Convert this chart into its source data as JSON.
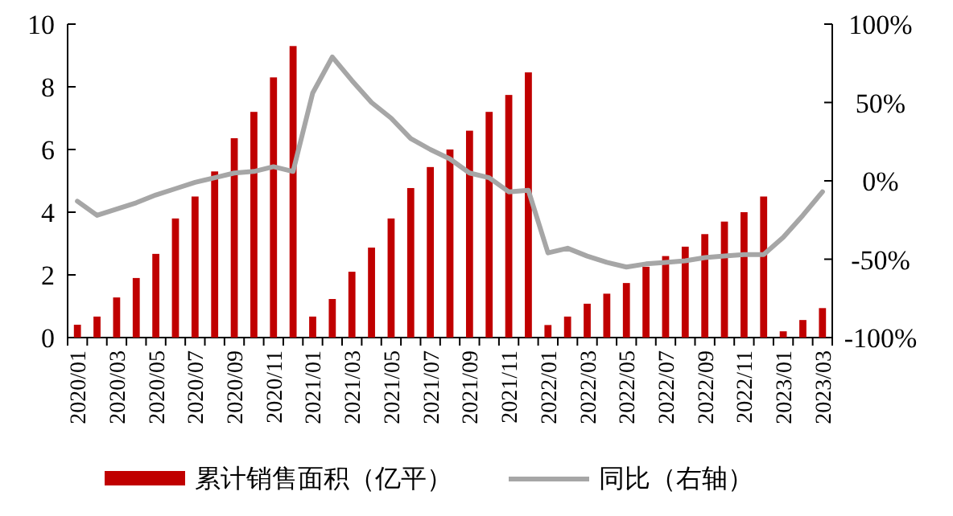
{
  "chart_data": {
    "type": "bar",
    "categories": [
      "2020/01",
      null,
      "2020/03",
      null,
      "2020/05",
      null,
      "2020/07",
      null,
      "2020/09",
      null,
      "2020/11",
      null,
      "2021/01",
      null,
      "2021/03",
      null,
      "2021/05",
      null,
      "2021/07",
      null,
      "2021/09",
      null,
      "2021/11",
      null,
      "2022/01",
      null,
      "2022/03",
      null,
      "2022/05",
      null,
      "2022/07",
      null,
      "2022/09",
      null,
      "2022/11",
      null,
      "2023/01",
      null,
      "2023/03"
    ],
    "series": [
      {
        "name": "累计销售面积（亿平）",
        "color": "#c00000",
        "values": [
          0.41,
          0.67,
          1.28,
          1.9,
          2.67,
          3.8,
          4.5,
          5.3,
          6.36,
          7.2,
          8.3,
          9.3,
          0.67,
          1.23,
          2.1,
          2.87,
          3.8,
          4.77,
          5.44,
          6.0,
          6.6,
          7.2,
          7.74,
          8.46,
          0.4,
          0.67,
          1.08,
          1.4,
          1.74,
          2.26,
          2.6,
          2.9,
          3.3,
          3.7,
          4.0,
          4.5,
          0.2,
          0.56,
          0.94
        ]
      },
      {
        "name": "同比（右轴）",
        "type": "line",
        "axis": "y2",
        "color": "#a6a6a6",
        "values": [
          -13,
          -22,
          -18,
          -14,
          -9,
          -5,
          -1,
          2,
          5,
          6,
          9,
          6,
          56,
          79,
          64,
          50,
          40,
          27,
          20,
          14,
          5,
          2,
          -7,
          -6,
          -46,
          -43,
          -48,
          -52,
          -55,
          -53,
          -52,
          -51,
          -49,
          -48,
          -47,
          -47,
          -36,
          -22,
          -7
        ]
      }
    ],
    "ylim": [
      0,
      10
    ],
    "yticks": [
      0,
      2,
      4,
      6,
      8,
      10
    ],
    "y2lim": [
      -100,
      100
    ],
    "y2ticks": [
      {
        "value": -100,
        "label": "-100%"
      },
      {
        "value": -50,
        "label": "-50%"
      },
      {
        "value": 0,
        "label": "0%"
      },
      {
        "value": 50,
        "label": "50%"
      },
      {
        "value": 100,
        "label": "100%"
      }
    ],
    "legend": "bottom",
    "grid": false
  }
}
